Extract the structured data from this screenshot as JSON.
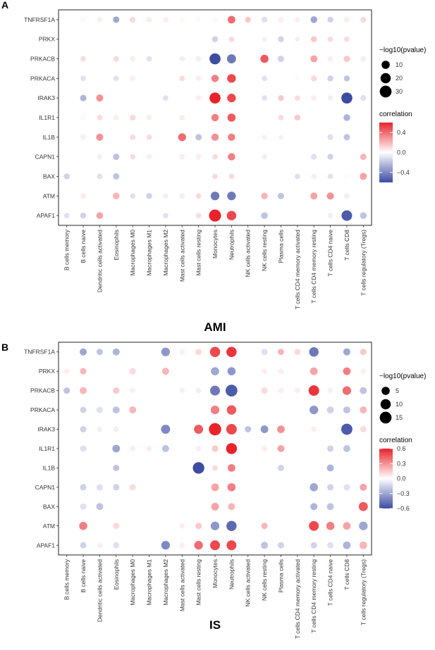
{
  "chart_data": [
    {
      "panel": "A",
      "type": "scatter",
      "xlabel": "AMI",
      "ylabel": "",
      "categories_x": [
        "B cells memory",
        "B cells naive",
        "Dendritic cells activated",
        "Eosinophils",
        "Macrophages M0",
        "Macrophages M1",
        "Macrophages M2",
        "Mast cells activated",
        "Mast cells resting",
        "Monocytes",
        "Neutrophils",
        "NK cells activated",
        "NK cells resting",
        "Plasma cells",
        "T cells CD4 memory activated",
        "T cells CD4 memory resting",
        "T cells CD4 naive",
        "T cells CD8",
        "T cells regulatory (Tregs)"
      ],
      "categories_y": [
        "TNFRSF1A",
        "PRKX",
        "PRKACB",
        "PRKACA",
        "IRAK3",
        "IL1R1",
        "IL1B",
        "CAPN1",
        "BAX",
        "ATM",
        "APAF1"
      ],
      "size_legend": {
        "title": "−log10(pvalue)",
        "labels": [
          "10",
          "20",
          "30"
        ],
        "values": [
          10,
          20,
          30
        ],
        "max": 40
      },
      "color_legend": {
        "title": "correlation",
        "labels": [
          "0.4",
          "0.0",
          "−0.4"
        ],
        "values": [
          0.4,
          0.0,
          -0.4
        ],
        "min": -0.6,
        "max": 0.6
      },
      "points": {
        "TNFRSF1A": [
          0,
          0.02,
          0.05,
          -0.3,
          0.1,
          0.05,
          0.05,
          0.02,
          0.02,
          0.02,
          0.4,
          0.15,
          -0.1,
          0.05,
          0.05,
          -0.3,
          -0.15,
          0.05,
          0.1
        ],
        "PRKX": [
          0,
          0,
          0,
          0,
          0,
          0,
          0,
          0,
          0,
          -0.15,
          0.1,
          0,
          -0.05,
          -0.15,
          -0.05,
          0.15,
          0.1,
          0.1,
          0
        ],
        "PRKACB": [
          0,
          0.1,
          0,
          0.1,
          0.05,
          -0.1,
          0,
          -0.05,
          0.05,
          -0.6,
          -0.45,
          0,
          0.45,
          -0.15,
          0,
          0.25,
          0.05,
          0.15,
          -0.05
        ],
        "PRKACA": [
          0,
          -0.1,
          0,
          -0.1,
          0.05,
          0,
          0,
          0.1,
          0.05,
          0.35,
          0.5,
          0,
          -0.1,
          0,
          0.02,
          0.1,
          -0.15,
          -0.2,
          0
        ],
        "IRAK3": [
          0,
          -0.25,
          0.3,
          0,
          0,
          0,
          -0.1,
          0,
          0.05,
          0.6,
          0.5,
          0,
          -0.1,
          0.15,
          0.1,
          0.05,
          -0.05,
          -0.6,
          -0.1
        ],
        "IL1R1": [
          0,
          0.02,
          0.1,
          0.05,
          0.1,
          0.05,
          0,
          0.05,
          0,
          0.35,
          0.45,
          0,
          0,
          0.1,
          0.15,
          0,
          0,
          -0.25,
          0
        ],
        "IL1B": [
          0,
          0.05,
          0.3,
          0,
          0.1,
          0.1,
          0,
          0.4,
          -0.2,
          0.3,
          0.35,
          0,
          0.05,
          0.05,
          0,
          0,
          -0.1,
          -0.2,
          0
        ],
        "CAPN1": [
          0,
          0,
          -0.05,
          -0.2,
          0.1,
          0.05,
          0,
          0.05,
          0.05,
          0.1,
          0.35,
          0,
          -0.05,
          0,
          0,
          -0.1,
          -0.15,
          0,
          0.2
        ],
        "BAX": [
          -0.15,
          0,
          -0.1,
          -0.2,
          0,
          0,
          0,
          0,
          0,
          0.1,
          0.1,
          0,
          0,
          0,
          -0.1,
          0.05,
          -0.1,
          0.02,
          0.25
        ],
        "ATM": [
          0,
          0.05,
          0,
          0.2,
          -0.1,
          -0.15,
          -0.05,
          -0.05,
          0.1,
          -0.45,
          -0.45,
          0,
          0.2,
          -0.2,
          0,
          0.25,
          0.3,
          -0.05,
          0
        ],
        "APAF1": [
          -0.1,
          -0.15,
          0.25,
          0,
          0,
          0,
          -0.1,
          0,
          0.1,
          0.6,
          0.5,
          0,
          -0.2,
          0,
          0,
          0,
          -0.05,
          -0.55,
          -0.2
        ]
      },
      "sizes": {
        "TNFRSF1A": [
          2,
          2,
          2,
          4,
          3,
          2,
          2,
          2,
          2,
          2,
          8,
          3,
          3,
          2,
          2,
          5,
          3,
          2,
          3
        ],
        "PRKX": [
          1,
          1,
          1,
          1,
          1,
          1,
          1,
          1,
          1,
          3,
          2,
          1,
          1,
          3,
          1,
          3,
          2,
          2,
          1
        ],
        "PRKACB": [
          1,
          2,
          1,
          2,
          2,
          2,
          1,
          2,
          2,
          25,
          14,
          1,
          10,
          4,
          1,
          6,
          2,
          4,
          2
        ],
        "PRKACA": [
          1,
          2,
          1,
          2,
          2,
          1,
          1,
          2,
          2,
          7,
          12,
          1,
          2,
          1,
          1,
          3,
          3,
          3,
          1
        ],
        "IRAK3": [
          1,
          4,
          6,
          1,
          1,
          1,
          2,
          1,
          2,
          25,
          12,
          1,
          2,
          3,
          2,
          2,
          2,
          25,
          3
        ],
        "IL1R1": [
          1,
          2,
          2,
          2,
          3,
          2,
          1,
          2,
          1,
          7,
          10,
          1,
          1,
          2,
          3,
          1,
          1,
          5,
          1
        ],
        "IL1B": [
          1,
          2,
          6,
          1,
          2,
          2,
          1,
          9,
          4,
          7,
          7,
          1,
          1,
          1,
          1,
          1,
          3,
          4,
          1
        ],
        "CAPN1": [
          1,
          1,
          2,
          4,
          2,
          2,
          1,
          2,
          2,
          2,
          7,
          1,
          2,
          1,
          1,
          3,
          3,
          1,
          4
        ],
        "BAX": [
          3,
          1,
          2,
          4,
          1,
          1,
          1,
          1,
          1,
          2,
          2,
          1,
          1,
          1,
          2,
          2,
          2,
          1,
          6
        ],
        "ATM": [
          1,
          2,
          1,
          5,
          2,
          3,
          2,
          2,
          2,
          12,
          12,
          1,
          5,
          4,
          1,
          6,
          6,
          2,
          1
        ],
        "APAF1": [
          2,
          3,
          5,
          1,
          1,
          1,
          2,
          1,
          2,
          32,
          16,
          1,
          5,
          1,
          1,
          1,
          2,
          22,
          5
        ]
      }
    },
    {
      "panel": "B",
      "type": "scatter",
      "xlabel": "IS",
      "ylabel": "",
      "categories_x": [
        "B cells memory",
        "B cells naive",
        "Dendritic cells activated",
        "Eosinophils",
        "Macrophages M0",
        "Macrophages M1",
        "Macrophages M2",
        "Mast cells activated",
        "Mast cells resting",
        "Monocytes",
        "Neutrophils",
        "NK cells activated",
        "NK cells resting",
        "Plasma cells",
        "T cells CD4 memory activated",
        "T cells CD4 memory resting",
        "T cells CD4 naive",
        "T cells CD8",
        "T cells regulatory (Tregs)"
      ],
      "categories_y": [
        "TNFRSF1A",
        "PRKX",
        "PRKACB",
        "PRKACA",
        "IRAK3",
        "IL1R1",
        "IL1B",
        "CAPN1",
        "BAX",
        "ATM",
        "APAF1"
      ],
      "size_legend": {
        "title": "−log10(pvalue)",
        "labels": [
          "5",
          "10",
          "15"
        ],
        "values": [
          5,
          10,
          15
        ],
        "max": 20
      },
      "color_legend": {
        "title": "correlation",
        "labels": [
          "0.6",
          "0.3",
          "0.0",
          "−0.3",
          "−0.6"
        ],
        "values": [
          0.6,
          0.3,
          0.0,
          -0.3,
          -0.6
        ],
        "min": -0.6,
        "max": 0.6
      },
      "points": {
        "TNFRSF1A": [
          0,
          -0.3,
          -0.2,
          -0.25,
          0,
          0,
          -0.35,
          0.05,
          0.1,
          0.5,
          0.55,
          0,
          -0.1,
          0.2,
          0.1,
          -0.45,
          0,
          -0.3,
          0.15
        ],
        "PRKX": [
          0.05,
          0.2,
          0,
          0,
          0.1,
          0,
          0.2,
          0,
          0,
          -0.3,
          -0.35,
          0,
          0.05,
          0.05,
          0,
          0.25,
          0,
          0.35,
          0.05
        ],
        "PRKACB": [
          -0.2,
          0.2,
          0,
          0.15,
          0.05,
          0,
          0,
          0.05,
          -0.05,
          -0.45,
          -0.55,
          0,
          0.1,
          0.05,
          0.05,
          0.55,
          0.05,
          0.4,
          -0.2
        ],
        "PRKACA": [
          0,
          -0.15,
          -0.1,
          -0.2,
          0.2,
          0,
          0,
          0,
          0,
          0.35,
          0.45,
          0,
          0,
          0,
          0,
          -0.35,
          -0.15,
          -0.2,
          0.2
        ],
        "IRAK3": [
          0,
          -0.15,
          -0.05,
          -0.05,
          0,
          0,
          -0.4,
          0,
          0.45,
          0.6,
          0.5,
          -0.2,
          -0.35,
          0.3,
          0,
          0.05,
          0,
          -0.55,
          0.1
        ],
        "IL1R1": [
          0,
          -0.1,
          0,
          -0.3,
          0.05,
          0.05,
          -0.2,
          0,
          0.05,
          0.15,
          0.6,
          0,
          0.05,
          0.25,
          0,
          0,
          -0.15,
          -0.2,
          0
        ],
        "IL1B": [
          0,
          0,
          0,
          -0.2,
          0,
          0,
          0,
          0,
          -0.6,
          0.1,
          0.35,
          0,
          0,
          -0.15,
          0,
          0,
          -0.25,
          0,
          0
        ],
        "CAPN1": [
          0,
          -0.15,
          -0.1,
          -0.15,
          0.1,
          0,
          0,
          0,
          0,
          0.25,
          0.35,
          0,
          0,
          0,
          0,
          -0.3,
          -0.15,
          -0.1,
          0.25
        ],
        "BAX": [
          0,
          -0.1,
          -0.2,
          0,
          0,
          0,
          0,
          0,
          0,
          0.25,
          0.2,
          0,
          0,
          0,
          0,
          -0.25,
          -0.2,
          0,
          0.45
        ],
        "ATM": [
          0,
          0.35,
          0,
          0.1,
          0,
          0,
          0,
          0.05,
          0.15,
          -0.35,
          -0.5,
          0,
          0.2,
          0,
          0,
          0.5,
          0.35,
          0.25,
          -0.3
        ],
        "APAF1": [
          0,
          -0.15,
          0.05,
          -0.1,
          0,
          0,
          -0.4,
          0.05,
          0.4,
          0.5,
          0.5,
          0,
          -0.2,
          -0.15,
          0,
          -0.15,
          -0.1,
          -0.25,
          0.2
        ]
      },
      "sizes": {
        "TNFRSF1A": [
          1,
          3,
          2,
          3,
          1,
          1,
          6,
          1,
          2,
          10,
          10,
          1,
          2,
          2,
          2,
          8,
          1,
          3,
          2
        ],
        "PRKX": [
          1,
          2,
          1,
          1,
          2,
          1,
          3,
          1,
          1,
          5,
          5,
          1,
          1,
          1,
          1,
          4,
          1,
          4,
          1
        ],
        "PRKACB": [
          2,
          3,
          1,
          2,
          1,
          1,
          1,
          1,
          1,
          9,
          15,
          1,
          2,
          1,
          1,
          11,
          1,
          6,
          3
        ],
        "PRKACA": [
          1,
          2,
          2,
          3,
          3,
          1,
          1,
          1,
          1,
          6,
          8,
          1,
          1,
          1,
          1,
          6,
          3,
          3,
          3
        ],
        "IRAK3": [
          1,
          2,
          1,
          1,
          1,
          1,
          7,
          1,
          7,
          17,
          11,
          2,
          4,
          4,
          1,
          1,
          1,
          13,
          2
        ],
        "IL1R1": [
          1,
          2,
          1,
          4,
          1,
          1,
          3,
          1,
          1,
          2,
          12,
          1,
          1,
          3,
          1,
          1,
          2,
          3,
          1
        ],
        "IL1B": [
          1,
          1,
          1,
          2,
          1,
          1,
          1,
          1,
          14,
          1,
          4,
          1,
          1,
          2,
          1,
          1,
          3,
          1,
          1
        ],
        "CAPN1": [
          1,
          2,
          2,
          2,
          2,
          1,
          1,
          1,
          1,
          4,
          5,
          1,
          1,
          1,
          1,
          5,
          2,
          2,
          3
        ],
        "BAX": [
          1,
          2,
          3,
          1,
          1,
          1,
          1,
          1,
          1,
          4,
          3,
          1,
          1,
          1,
          1,
          3,
          3,
          1,
          7
        ],
        "ATM": [
          1,
          5,
          1,
          2,
          1,
          1,
          1,
          1,
          2,
          6,
          10,
          1,
          2,
          1,
          1,
          9,
          5,
          4,
          6
        ],
        "APAF1": [
          1,
          2,
          1,
          2,
          1,
          1,
          6,
          1,
          6,
          9,
          9,
          1,
          3,
          2,
          1,
          2,
          2,
          4,
          4
        ]
      }
    }
  ]
}
